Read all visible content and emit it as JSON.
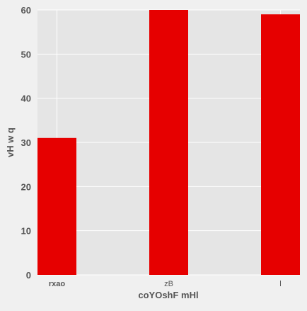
{
  "chart_data": {
    "type": "bar",
    "title": "",
    "xlabel": "coYOshF mHl",
    "ylabel": "vH w q",
    "categories": [
      "rxao",
      "zB",
      "l"
    ],
    "values": [
      31,
      60,
      59
    ],
    "ylim": [
      0,
      60
    ],
    "yticks": [
      0,
      10,
      20,
      30,
      40,
      50,
      60
    ],
    "grid": true,
    "legend": "none",
    "colors": {
      "bar": "#e60000",
      "plot_background": "#e5e5e5",
      "grid": "#ffffff",
      "page_background": "#f0f0f0",
      "text": "#555555"
    }
  }
}
